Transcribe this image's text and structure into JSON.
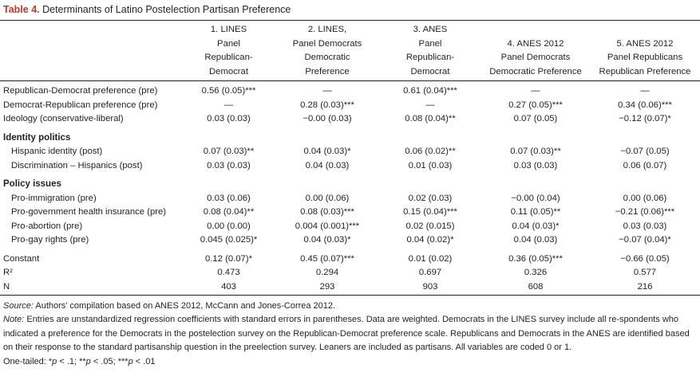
{
  "title": {
    "label": "Table 4.",
    "text": " Determinants of Latino Postelection Partisan Preference"
  },
  "columns": [
    [
      "1. LINES",
      "Panel",
      "Republican-",
      "Democrat"
    ],
    [
      "2. LINES,",
      "Panel Democrats",
      "Democratic",
      "Preference"
    ],
    [
      "3. ANES",
      "Panel",
      "Republican-",
      "Democrat"
    ],
    [
      "4. ANES 2012",
      "Panel Democrats",
      "Democratic Preference"
    ],
    [
      "5. ANES 2012",
      "Panel Republicans",
      "Republican Preference"
    ]
  ],
  "rows_top": [
    {
      "label": "Republican-Democrat preference (pre)",
      "values": [
        "0.56 (0.05)***",
        "—",
        "0.61 (0.04)***",
        "—",
        "—"
      ]
    },
    {
      "label": "Democrat-Republican preference (pre)",
      "values": [
        "—",
        "0.28 (0.03)***",
        "—",
        "0.27 (0.05)***",
        "0.34 (0.06)***"
      ]
    },
    {
      "label": "Ideology (conservative-liberal)",
      "values": [
        "0.03 (0.03)",
        "−0.00 (0.03)",
        "0.08 (0.04)**",
        "0.07 (0.05)",
        "−0.12 (0.07)*"
      ]
    }
  ],
  "identity_politics": {
    "heading": "Identity politics",
    "rows": [
      {
        "label": "Hispanic identity (post)",
        "values": [
          "0.07 (0.03)**",
          "0.04 (0.03)*",
          "0.06 (0.02)**",
          "0.07 (0.03)**",
          "−0.07 (0.05)"
        ]
      },
      {
        "label": "Discrimination – Hispanics (post)",
        "values": [
          "0.03 (0.03)",
          "0.04 (0.03)",
          "0.01 (0.03)",
          "0.03 (0.03)",
          "0.06 (0.07)"
        ]
      }
    ]
  },
  "policy_issues": {
    "heading": "Policy issues",
    "rows": [
      {
        "label": "Pro-immigration (pre)",
        "values": [
          "0.03 (0.06)",
          "0.00 (0.06)",
          "0.02 (0.03)",
          "−0.00 (0.04)",
          "0.00 (0.06)"
        ]
      },
      {
        "label": "Pro-government health insurance (pre)",
        "values": [
          "0.08 (0.04)**",
          "0.08 (0.03)***",
          "0.15 (0.04)***",
          "0.11 (0.05)**",
          "−0.21 (0.06)***"
        ]
      },
      {
        "label": "Pro-abortion (pre)",
        "values": [
          "0.00 (0.00)",
          "0.004 (0.001)***",
          "0.02 (0.015)",
          "0.04 (0.03)*",
          "0.03 (0.03)"
        ]
      },
      {
        "label": "Pro-gay rights (pre)",
        "values": [
          "0.045 (0.025)*",
          "0.04 (0.03)*",
          "0.04 (0.02)*",
          "0.04 (0.03)",
          "−0.07 (0.04)*"
        ]
      }
    ]
  },
  "rows_bottom": [
    {
      "label": "Constant",
      "values": [
        "0.12 (0.07)*",
        "0.45 (0.07)***",
        "0.01 (0.02)",
        "0.36 (0.05)***",
        "−0.66 (0.05)"
      ]
    },
    {
      "label": "R²",
      "values": [
        "0.473",
        "0.294",
        "0.697",
        "0.326",
        "0.577"
      ]
    },
    {
      "label": "N",
      "values": [
        "403",
        "293",
        "903",
        "608",
        "216"
      ]
    }
  ],
  "notes": {
    "source_label": "Source:",
    "source_text": " Authors' compilation based on ANES 2012, McCann and Jones-Correa 2012.",
    "note_label": "Note:",
    "note_text": " Entries are unstandardized regression coefficients with standard errors in parentheses. Data are weighted. Democrats in the LINES survey include all re-spondents who indicated a preference for the Democrats in the postelection survey on the Republican-Democrat preference scale. Republicans and Democrats in the ANES are identified based on their response to the standard partisanship question in the preelection survey. Leaners are included as partisans. All variables are coded 0 or 1.",
    "sig_prefix": "One-tailed: *",
    "sig_p1": "p",
    "sig_t1": " < .1; **",
    "sig_p2": "p",
    "sig_t2": " < .05; ***",
    "sig_p3": "p",
    "sig_t3": " < .01"
  }
}
